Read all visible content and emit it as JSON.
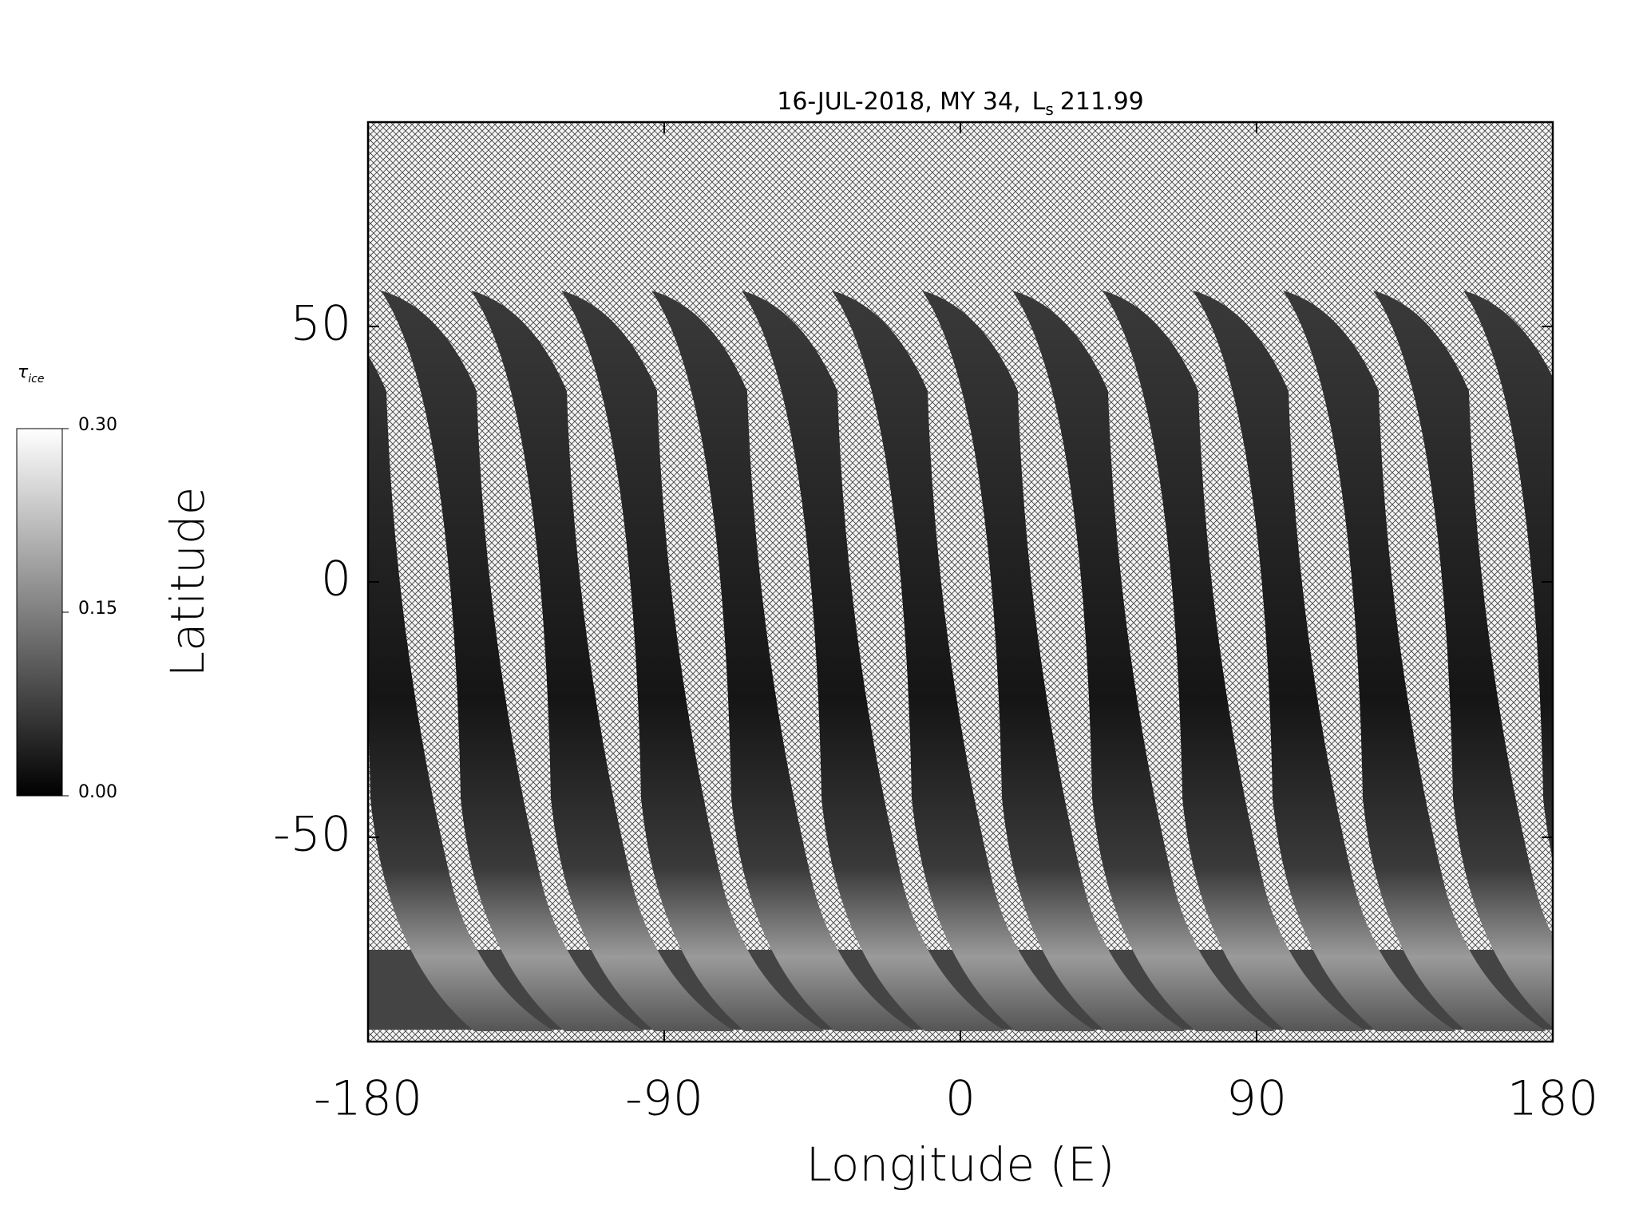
{
  "chart_data": {
    "type": "map",
    "title": "16-JUL-2018, MY 34,",
    "title_symbol": "L",
    "title_symbol_sub": "s",
    "title_value": 211.99,
    "xlabel": "Longitude (E)",
    "ylabel": "Latitude",
    "xlim": [
      -180,
      180
    ],
    "ylim": [
      -90,
      90
    ],
    "xticks": [
      -180,
      -90,
      0,
      90,
      180
    ],
    "yticks": [
      -50,
      0,
      50
    ],
    "colorbar": {
      "label": "τ",
      "label_sub": "ice",
      "lim": [
        0,
        0.3
      ],
      "ticks": [
        {
          "value": 0,
          "label": "0.00"
        },
        {
          "value": 0.15,
          "label": "0.15"
        },
        {
          "value": 0.3,
          "label": "0.30"
        }
      ],
      "colors": [
        "#000000",
        "#ffffff"
      ]
    }
  }
}
